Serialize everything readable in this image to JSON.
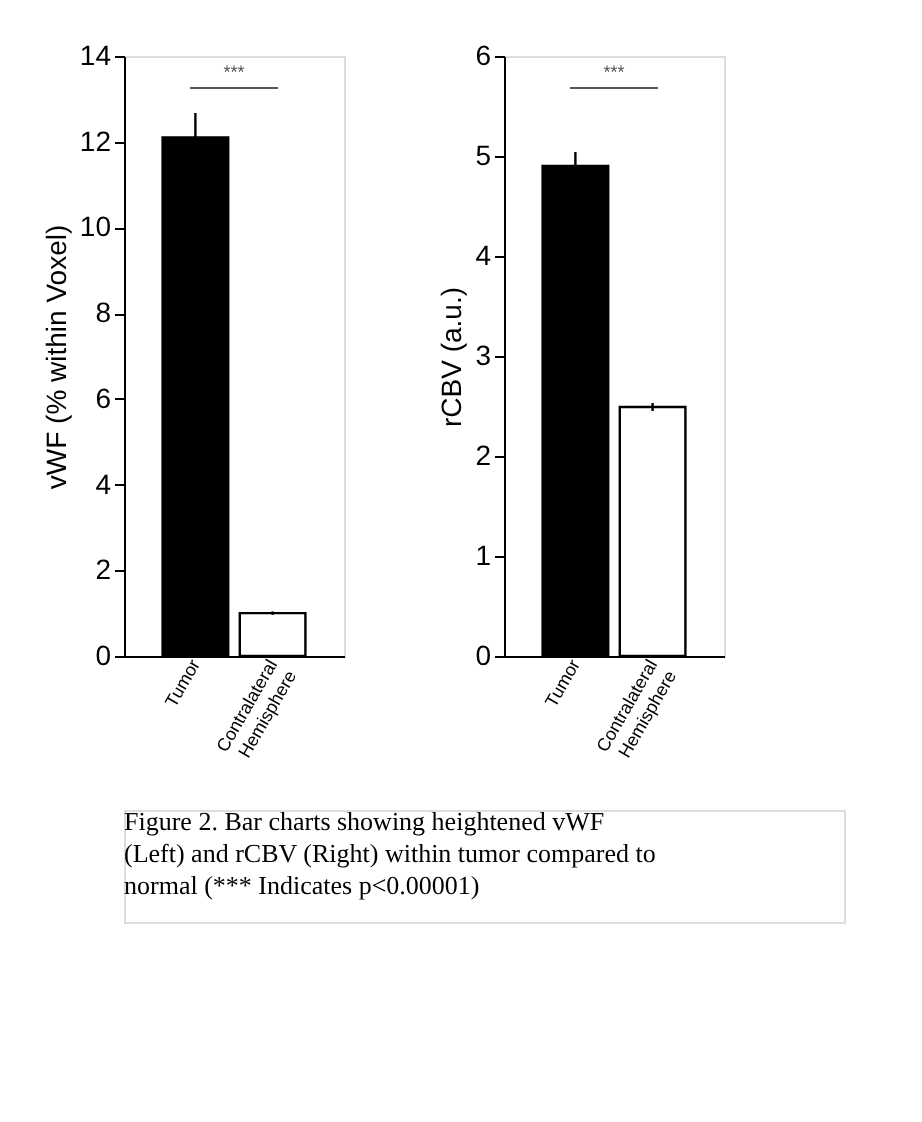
{
  "chart_data": [
    {
      "type": "bar",
      "ylabel": "vWF (% within Voxel)",
      "categories": [
        "Tumor",
        "Contralateral Hemisphere"
      ],
      "values": [
        12.1,
        1.0
      ],
      "errors": [
        0.57,
        0.04
      ],
      "colors": [
        "#000000",
        "#ffffff"
      ],
      "ylim": [
        0,
        14
      ],
      "yticks": [
        0,
        2,
        4,
        6,
        8,
        10,
        12,
        14
      ],
      "grid": false,
      "annotations": [
        "***",
        "Figure 2.  Bar charts showing heightened vWF (Left) and rCBV (Right) within tumor compared to normal  (*** Indicates p<0.00001)"
      ]
    },
    {
      "type": "bar",
      "ylabel": "rCBV (a.u.)",
      "categories": [
        "Tumor",
        "Contralateral Hemisphere"
      ],
      "values": [
        4.9,
        2.49
      ],
      "errors": [
        0.14,
        0.04
      ],
      "colors": [
        "#000000",
        "#ffffff"
      ],
      "ylim": [
        0,
        6
      ],
      "yticks": [
        0,
        1,
        2,
        3,
        4,
        5,
        6
      ],
      "grid": false,
      "annotations": [
        "***"
      ]
    }
  ]
}
